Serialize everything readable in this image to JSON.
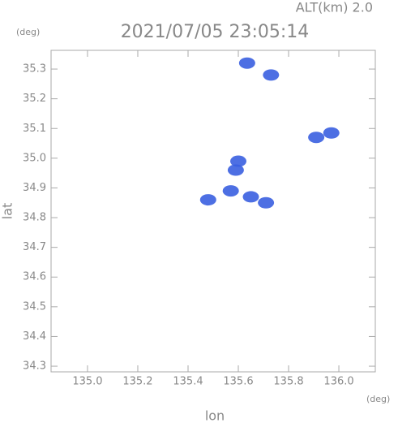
{
  "chart_data": {
    "type": "scatter",
    "title": "2021/07/05 23:05:14",
    "subtitle": "ALT(km)  2.0",
    "x_label": "lon",
    "y_label": "lat",
    "x_unit": "(deg)",
    "y_unit": "(deg)",
    "x": [
      135.73,
      135.635,
      135.91,
      135.97,
      135.6,
      135.59,
      135.57,
      135.65,
      135.71,
      135.48
    ],
    "values": [
      35.28,
      35.32,
      35.07,
      35.085,
      34.99,
      34.96,
      34.89,
      34.87,
      34.85,
      34.86
    ],
    "color": "#3a5fe0",
    "xlim": [
      134.855,
      136.145
    ],
    "ylim": [
      34.281,
      35.363
    ],
    "xticks": [
      {
        "value": 135,
        "label": "135.0"
      },
      135.2,
      135.4,
      135.6,
      135.8,
      {
        "value": 136,
        "label": "136.0"
      }
    ],
    "yticks": [
      34.3,
      34.4,
      34.5,
      34.6,
      34.7,
      34.8,
      34.9,
      {
        "value": 35,
        "label": "35.0"
      },
      35.1,
      35.2,
      35.3
    ]
  }
}
